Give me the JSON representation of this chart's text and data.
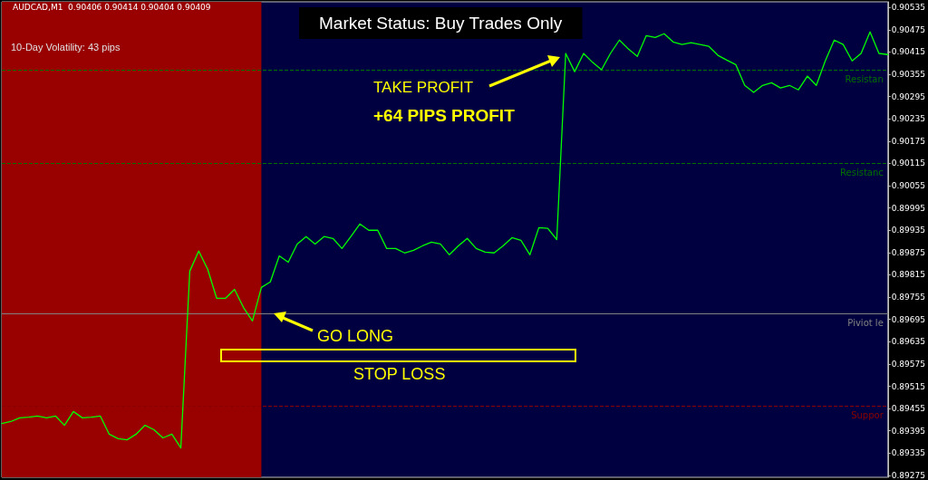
{
  "chart_data": {
    "type": "line",
    "title": "AUDCAD,M1  0.90406 0.90414 0.90404 0.90409",
    "annotations": [
      "10-Day Volatility: 43 pips",
      "Market Status: Buy Trades Only",
      "TAKE PROFIT",
      "+64 PIPS PROFIT",
      "GO LONG",
      "STOP LOSS"
    ],
    "categories": [
      null,
      null,
      null,
      null,
      null,
      null,
      null,
      null,
      null,
      null,
      null,
      null,
      null,
      null,
      null,
      null,
      null,
      null,
      null,
      null,
      null,
      null,
      null,
      null,
      null,
      null,
      null,
      null,
      null,
      null,
      null,
      null,
      null,
      null,
      null,
      null,
      null,
      null,
      null,
      null,
      null,
      null,
      null,
      null,
      null,
      null,
      null,
      null,
      null,
      null,
      null,
      null,
      null,
      null,
      null,
      null,
      null,
      null,
      null,
      null,
      null,
      null,
      null,
      null,
      null,
      null,
      null,
      null,
      null,
      null,
      null,
      null,
      null,
      null,
      null,
      null,
      null,
      null,
      null,
      null,
      null,
      null,
      null,
      null,
      null,
      null,
      null,
      null,
      null,
      null,
      null,
      null,
      null,
      null,
      null,
      null,
      null,
      null,
      null,
      null
    ],
    "series": [
      {
        "color": "#00ff00",
        "values": [
          0.89415,
          0.8942,
          0.8943,
          0.89432,
          0.89435,
          0.8943,
          0.89435,
          0.8941,
          0.89447,
          0.8943,
          0.89432,
          0.89435,
          0.89386,
          0.89374,
          0.89371,
          0.89386,
          0.8941,
          0.89398,
          0.89376,
          0.89386,
          0.89349,
          0.89825,
          0.89879,
          0.8983,
          0.89752,
          0.89752,
          0.89776,
          0.89727,
          0.89691,
          0.89781,
          0.89796,
          0.89866,
          0.89849,
          0.89898,
          0.89918,
          0.89898,
          0.89918,
          0.89913,
          0.89886,
          0.89918,
          0.89952,
          0.89935,
          0.89935,
          0.89886,
          0.89886,
          0.89874,
          0.89881,
          0.89893,
          0.89903,
          0.89898,
          0.89869,
          0.89893,
          0.89913,
          0.89886,
          0.89876,
          0.89874,
          0.89893,
          0.89915,
          0.89908,
          0.89869,
          0.89942,
          0.8994,
          0.8991,
          0.90411,
          0.90362,
          0.90411,
          0.90387,
          0.90367,
          0.90411,
          0.90447,
          0.90423,
          0.90403,
          0.90459,
          0.90454,
          0.90464,
          0.90442,
          0.90435,
          0.9044,
          0.90435,
          0.9043,
          0.90406,
          0.90393,
          0.90381,
          0.90325,
          0.90306,
          0.90325,
          0.90332,
          0.90318,
          0.90325,
          0.90313,
          0.9035,
          0.90325,
          0.90391,
          0.90447,
          0.90435,
          0.90391,
          0.90411,
          0.90469,
          0.90411,
          0.90408
        ]
      }
    ],
    "ylim": [
      0.8927,
      0.9055
    ],
    "yticks": [
      0.89275,
      0.89335,
      0.89395,
      0.89455,
      0.89515,
      0.89575,
      0.89635,
      0.89695,
      0.89755,
      0.89815,
      0.89875,
      0.89935,
      0.89995,
      0.90055,
      0.90115,
      0.90175,
      0.90235,
      0.90295,
      0.90355,
      0.90415,
      0.90475,
      0.90535
    ],
    "tick_labels": "y",
    "grid": false,
    "marker": "none",
    "line_style": "solid",
    "ref_lines": [
      {
        "axis": "y",
        "value": 0.90366,
        "label": "Resistan",
        "color": "#007000",
        "line_style": "dashed"
      },
      {
        "axis": "y",
        "value": 0.90116,
        "label": "Resistanc",
        "color": "#007000",
        "line_style": "dashed"
      },
      {
        "axis": "y",
        "value": 0.89711,
        "label": "Piviot le",
        "color": "#808080",
        "line_style": "solid"
      },
      {
        "axis": "y",
        "value": 0.89461,
        "label": "Suppor",
        "color": "#8b0000",
        "line_style": "dashed"
      }
    ]
  }
}
